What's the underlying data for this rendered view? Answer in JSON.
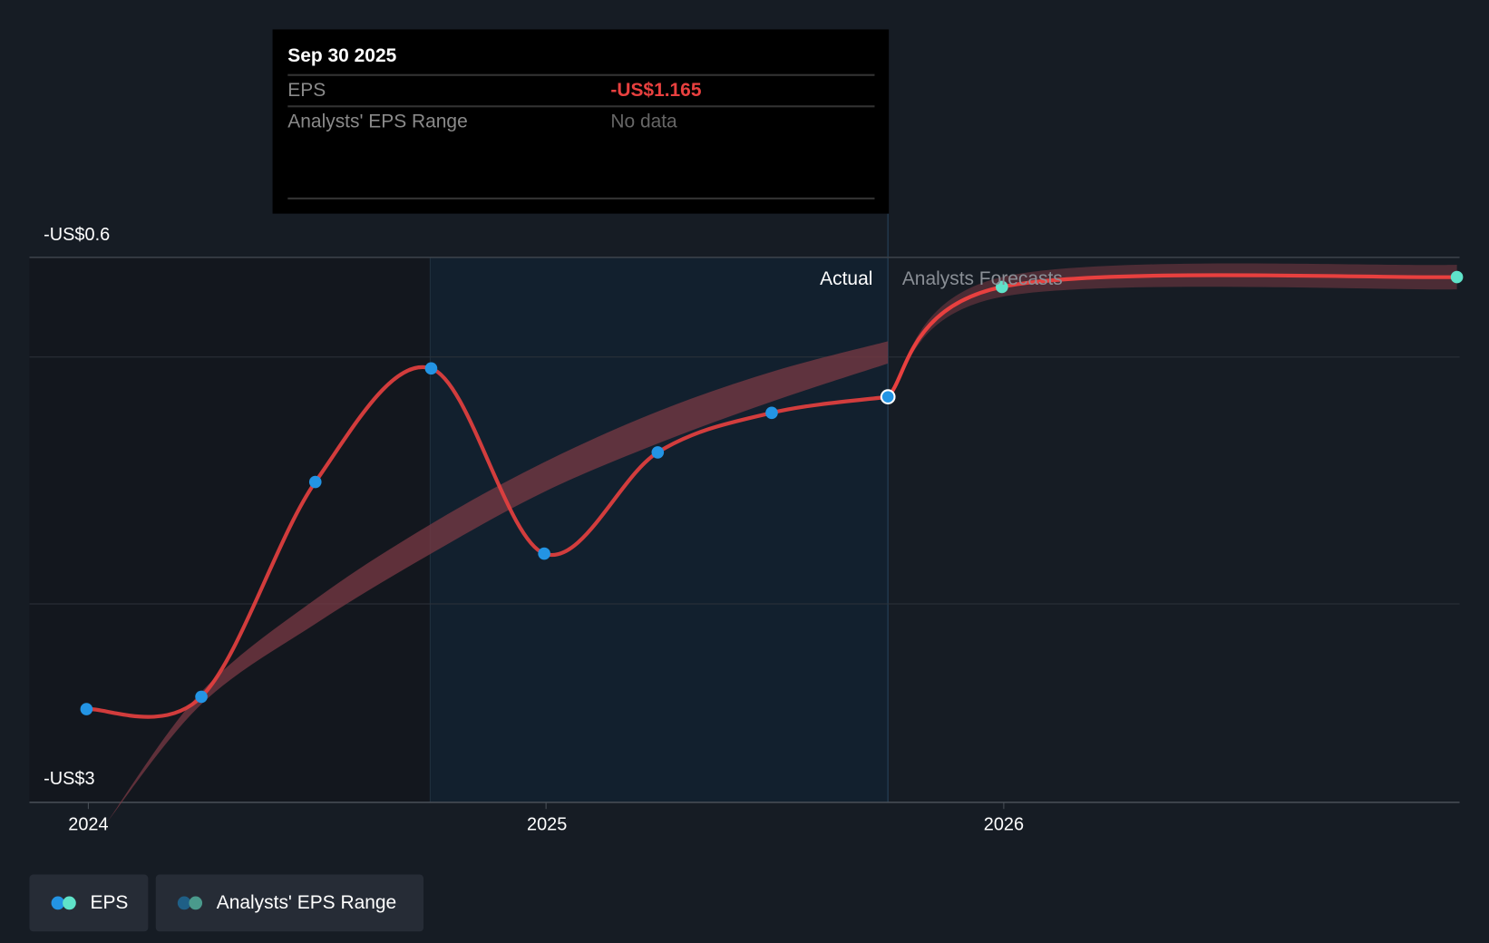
{
  "colors": {
    "eps_line": "#e8403f",
    "eps_dot": "#2394e4",
    "forecast_dot": "#5fe3c9",
    "range_band": "#7a3a44",
    "negative": "#e8403f",
    "highlight_region": "#12202e"
  },
  "tooltip": {
    "date": "Sep 30 2025",
    "rows": [
      {
        "label": "EPS",
        "value": "-US$1.165"
      },
      {
        "label": "Analysts' EPS Range",
        "value": "No data"
      }
    ]
  },
  "chart_data": {
    "type": "line",
    "title": "",
    "xlabel": "",
    "ylabel": "EPS",
    "x_ticks": [
      "2024",
      "2025",
      "2026"
    ],
    "y_ticks": [
      "-US$0.6",
      "-US$3"
    ],
    "ylim": [
      -3,
      -0.6
    ],
    "sections": {
      "actual": "Actual",
      "forecast": "Analysts Forecasts"
    },
    "series": [
      {
        "name": "EPS",
        "x": [
          2023.996,
          2024.247,
          2024.496,
          2024.749,
          2024.996,
          2025.244,
          2025.493,
          2025.747
        ],
        "values": [
          -2.43,
          -2.38,
          -1.51,
          -1.05,
          -1.8,
          -1.39,
          -1.23,
          -1.165
        ]
      },
      {
        "name": "EPS Forecast",
        "x": [
          2025.747,
          2025.996,
          2026.99
        ],
        "values": [
          -1.165,
          -0.72,
          -0.68
        ]
      },
      {
        "name": "Analysts' EPS Range",
        "x": [
          2024.04,
          2024.247,
          2024.5,
          2024.749,
          2024.996,
          2025.25,
          2025.5,
          2025.747
        ],
        "low": [
          -2.89,
          -2.41,
          -2.08,
          -1.8,
          -1.55,
          -1.35,
          -1.18,
          -1.03
        ],
        "high": [
          -2.89,
          -2.36,
          -1.98,
          -1.68,
          -1.43,
          -1.22,
          -1.06,
          -0.94
        ]
      },
      {
        "name": "Analysts' EPS Range Forecast",
        "x": [
          2025.747,
          2025.996,
          2026.99
        ],
        "low": [
          -1.165,
          -0.76,
          -0.73
        ],
        "high": [
          -1.165,
          -0.68,
          -0.63
        ]
      }
    ],
    "legend": [
      {
        "label": "EPS"
      },
      {
        "label": "Analysts' EPS Range"
      }
    ],
    "legend_position": "bottom-left",
    "grid": true
  }
}
